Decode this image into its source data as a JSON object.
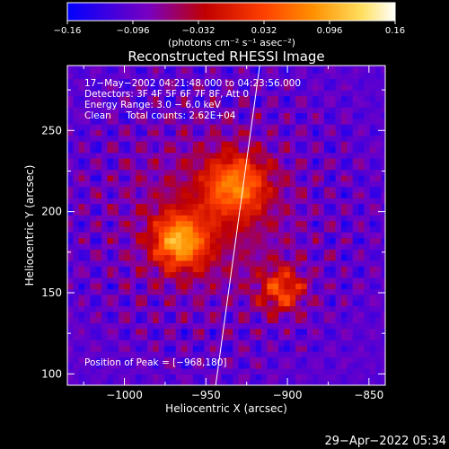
{
  "chart_data": {
    "type": "heatmap",
    "title": "Reconstructed RHESSI Image",
    "colorbar": {
      "ticks": [
        "−0.16",
        "−0.096",
        "−0.032",
        "0.032",
        "0.096",
        "0.16"
      ],
      "label": "(photons cm⁻² s⁻¹ asec⁻²)",
      "range": [
        -0.16,
        0.16
      ],
      "colors": [
        "#0000ff",
        "#7a00c0",
        "#c00000",
        "#ff4000",
        "#ff9000",
        "#ffe060",
        "#ffffff"
      ]
    },
    "info_lines": [
      "17−May−2002 04:21:48.000 to 04:23:56.000",
      "Detectors: 3F 4F 5F 6F 7F 8F, Att 0",
      "Energy Range: 3.0 − 6.0 keV",
      "Clean     Total counts: 2.62E+04"
    ],
    "peak_text": "Position of Peak = [−968,180]",
    "xlabel": "Heliocentric X (arcsec)",
    "ylabel": "Heliocentric Y (arcsec)",
    "xlim": [
      -1035,
      -840
    ],
    "ylim": [
      93,
      290
    ],
    "xticks": [
      -1000,
      -950,
      -900,
      -850
    ],
    "yticks": [
      100,
      150,
      200,
      250
    ],
    "xtick_labels": [
      "−1000",
      "−950",
      "−900",
      "−850"
    ],
    "ytick_labels": [
      "100",
      "150",
      "200",
      "250"
    ],
    "peak": [
      -968,
      180
    ],
    "sources": [
      {
        "x": -968,
        "y": 180,
        "sigma": 12,
        "amp": 0.16
      },
      {
        "x": -933,
        "y": 215,
        "sigma": 14,
        "amp": 0.13
      },
      {
        "x": -905,
        "y": 150,
        "sigma": 10,
        "amp": 0.12
      },
      {
        "x": -950,
        "y": 195,
        "sigma": 38,
        "amp": 0.055
      }
    ],
    "limb_line": [
      [
        -944,
        93
      ],
      [
        -917,
        290
      ]
    ],
    "background_level": -0.1
  },
  "timestamp": "29−Apr−2022 05:34"
}
